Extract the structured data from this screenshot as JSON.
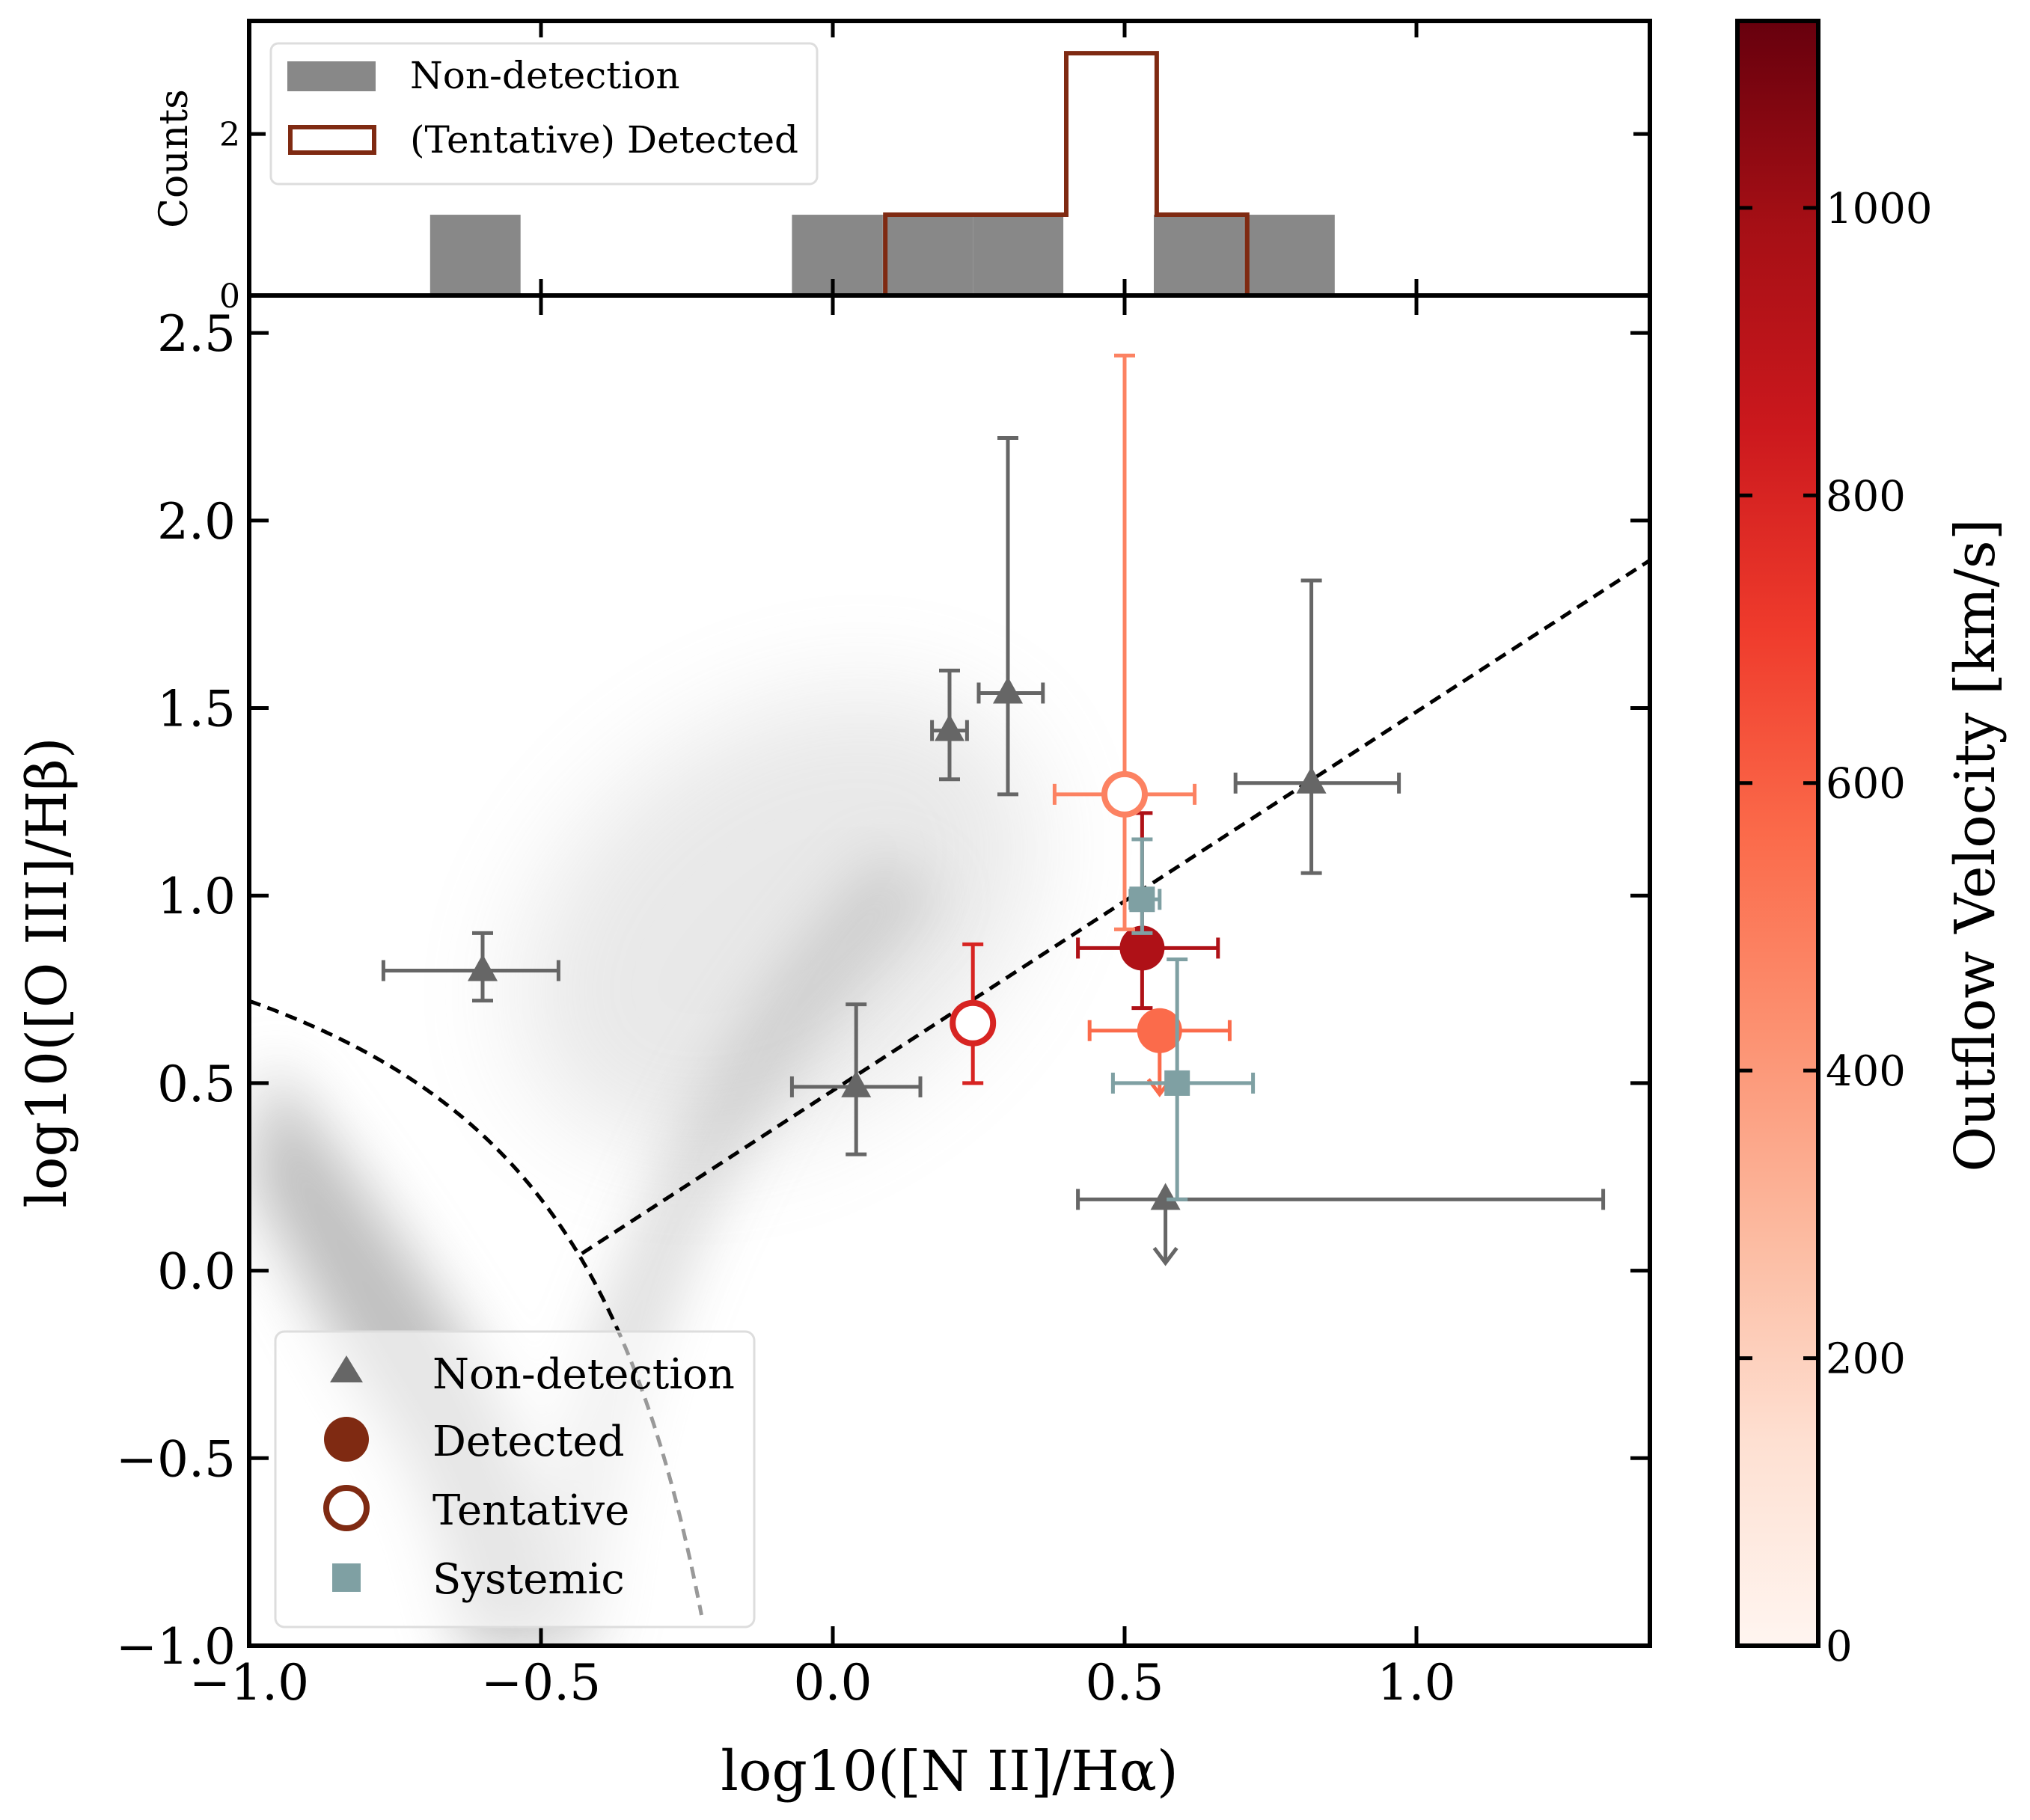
{
  "chart_data": [
    {
      "type": "histogram",
      "panel": "top",
      "ylabel": "Counts",
      "xlim": [
        -1.0,
        1.4
      ],
      "ylim": [
        0,
        3.4
      ],
      "yticks": [
        0,
        2
      ],
      "bin_edges": [
        -1.0,
        -0.845,
        -0.69,
        -0.535,
        -0.38,
        -0.225,
        -0.07,
        0.085,
        0.24,
        0.395,
        0.55,
        0.705,
        0.86
      ],
      "series": [
        {
          "name": "Non-detection",
          "style": "filled",
          "color": "#888888",
          "counts": [
            0,
            0,
            1,
            0,
            0,
            0,
            1,
            1,
            1,
            0,
            1,
            1
          ]
        },
        {
          "name": "(Tentative) Detected",
          "style": "step",
          "color": "#7f2a12",
          "edges": [
            0.09,
            0.245,
            0.4,
            0.555,
            0.71
          ],
          "counts": [
            1,
            1,
            3,
            1
          ]
        }
      ],
      "legend": {
        "position": "top-left",
        "entries": [
          {
            "label": "Non-detection",
            "kind": "filled"
          },
          {
            "label": "(Tentative) Detected",
            "kind": "step"
          }
        ]
      }
    },
    {
      "type": "scatter",
      "panel": "main",
      "title": "",
      "xlabel": "log10([N II]/Hα)",
      "ylabel": "log10([O III]/Hβ)",
      "xlim": [
        -1.0,
        1.4
      ],
      "ylim": [
        -1.0,
        2.6
      ],
      "xticks": [
        -1.0,
        -0.5,
        0.0,
        0.5,
        1.0
      ],
      "yticks": [
        -1.0,
        -0.5,
        0.0,
        0.5,
        1.0,
        1.5,
        2.0,
        2.5
      ],
      "tick_labels_x": [
        "−1.0",
        "−0.5",
        "0.0",
        "0.5",
        "1.0"
      ],
      "tick_labels_y": [
        "−1.0",
        "−0.5",
        "0.0",
        "0.5",
        "1.0",
        "1.5",
        "2.0",
        "2.5"
      ],
      "background": "SDSS galaxy density (grey)",
      "demarcation_lines": [
        {
          "name": "Kauffmann03",
          "formula": "0.61/(x-0.05)+1.3",
          "x_range": [
            -1.0,
            -0.22
          ]
        },
        {
          "name": "AGN/LINER",
          "formula": "1.01*x+0.48",
          "x_range": [
            -0.43,
            1.4
          ]
        }
      ],
      "series": [
        {
          "name": "Non-detection",
          "marker": "triangle",
          "color": "#666666",
          "points": [
            {
              "x": -0.6,
              "y": 0.8,
              "xerr": [
                0.17,
                0.13
              ],
              "yerr": [
                0.08,
                0.1
              ]
            },
            {
              "x": 0.04,
              "y": 0.49,
              "xerr": [
                0.11,
                0.11
              ],
              "yerr": [
                0.18,
                0.22
              ]
            },
            {
              "x": 0.2,
              "y": 1.44,
              "xerr": [
                0.03,
                0.03
              ],
              "yerr": [
                0.13,
                0.16
              ]
            },
            {
              "x": 0.3,
              "y": 1.54,
              "xerr": [
                0.05,
                0.06
              ],
              "yerr": [
                0.27,
                0.68
              ]
            },
            {
              "x": 0.82,
              "y": 1.3,
              "xerr": [
                0.13,
                0.15
              ],
              "yerr": [
                0.24,
                0.54
              ]
            },
            {
              "x": 0.57,
              "y": 0.19,
              "xerr": [
                0.15,
                0.75
              ],
              "yerr": [
                0.0,
                0.0
              ],
              "upper_limit": true
            }
          ]
        },
        {
          "name": "Detected",
          "marker": "filled circle",
          "color_by": "outflow velocity",
          "points": [
            {
              "x": 0.53,
              "y": 0.86,
              "xerr": [
                0.11,
                0.13
              ],
              "yerr": [
                0.16,
                0.36
              ],
              "velocity": 950
            },
            {
              "x": 0.56,
              "y": 0.64,
              "xerr": [
                0.12,
                0.12
              ],
              "yerr": [
                0.0,
                0.0
              ],
              "upper_limit": true,
              "velocity": 560
            }
          ]
        },
        {
          "name": "Tentative",
          "marker": "open circle",
          "color_by": "outflow velocity",
          "points": [
            {
              "x": 0.24,
              "y": 0.66,
              "xerr": [
                0.02,
                0.02
              ],
              "yerr": [
                0.16,
                0.21
              ],
              "velocity": 800
            },
            {
              "x": 0.5,
              "y": 1.27,
              "xerr": [
                0.12,
                0.12
              ],
              "yerr": [
                0.36,
                1.17
              ],
              "velocity": 480
            }
          ]
        },
        {
          "name": "Systemic",
          "marker": "square",
          "color": "#7fa0a3",
          "points": [
            {
              "x": 0.53,
              "y": 0.99,
              "xerr": [
                0.02,
                0.03
              ],
              "yerr": [
                0.09,
                0.16
              ]
            },
            {
              "x": 0.59,
              "y": 0.5,
              "xerr": [
                0.11,
                0.13
              ],
              "yerr": [
                0.31,
                0.33
              ]
            }
          ]
        }
      ],
      "legend": {
        "position": "bottom-left",
        "entries": [
          {
            "label": "Non-detection",
            "kind": "triangle",
            "color": "#666666"
          },
          {
            "label": "Detected",
            "kind": "filled circle",
            "color": "#7f2a12"
          },
          {
            "label": "Tentative",
            "kind": "open circle",
            "color": "#7f2a12"
          },
          {
            "label": "Systemic",
            "kind": "square",
            "color": "#7fa0a3"
          }
        ]
      }
    },
    {
      "type": "colorbar",
      "label": "Outflow Velocity [km/s]",
      "range": [
        0,
        1130
      ],
      "ticks": [
        0,
        200,
        400,
        600,
        800,
        1000
      ],
      "tick_labels": [
        "0",
        "200",
        "400",
        "600",
        "800",
        "1000"
      ],
      "colormap": "Reds",
      "stops": [
        "#fff5f0",
        "#fee0d2",
        "#fcbba1",
        "#fc9272",
        "#fb6a4a",
        "#ef3b2c",
        "#cb181d",
        "#a50f15",
        "#67000d"
      ]
    }
  ]
}
